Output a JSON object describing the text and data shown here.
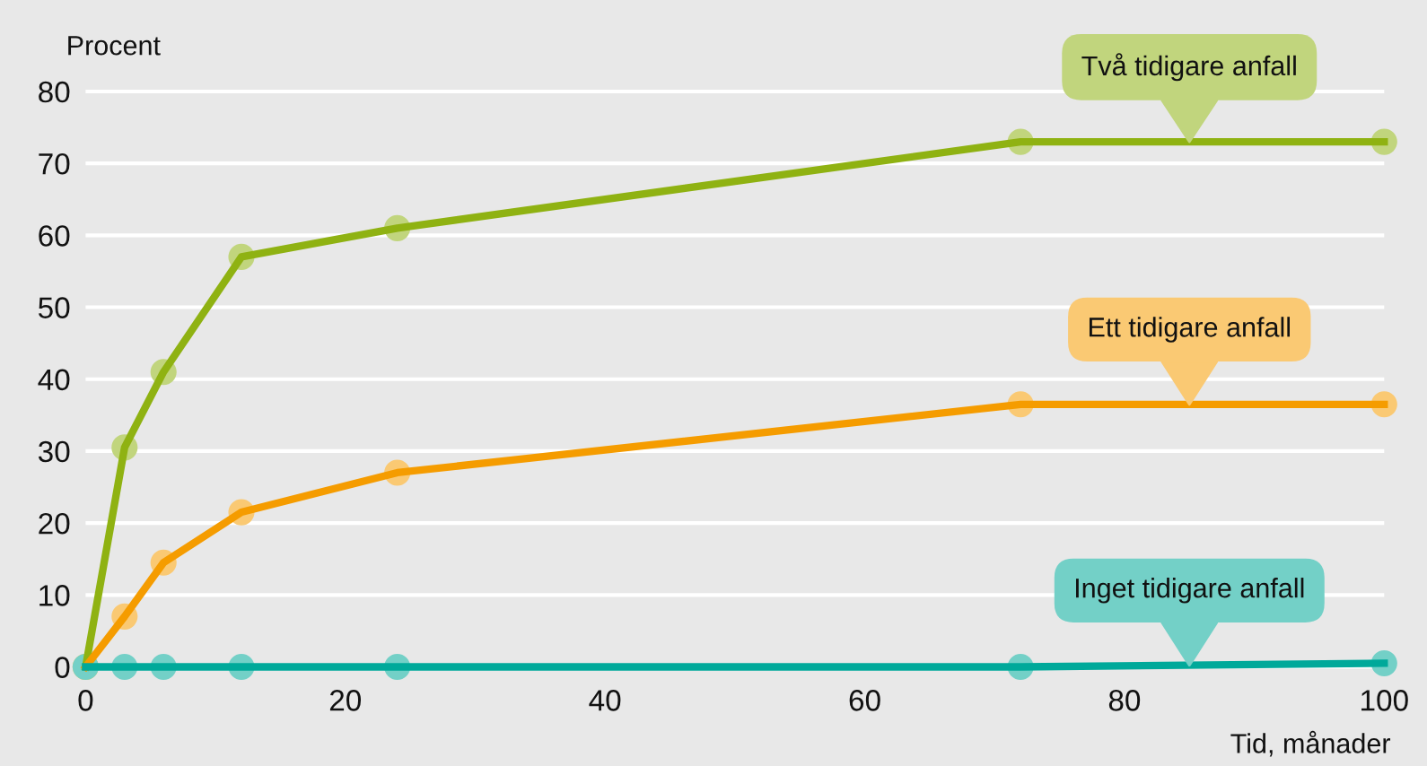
{
  "chart_data": {
    "type": "line",
    "xlabel": "Tid, månader",
    "ylabel": "Procent",
    "x": [
      0,
      3,
      6,
      12,
      24,
      72,
      100
    ],
    "series": [
      {
        "name": "Två tidigare anfall",
        "color": "#8fb212",
        "values": [
          0,
          30.5,
          41,
          57,
          61,
          73,
          73
        ]
      },
      {
        "name": "Ett tidigare anfall",
        "color": "#f59c00",
        "values": [
          0,
          7,
          14.5,
          21.5,
          27,
          36.5,
          36.5
        ]
      },
      {
        "name": "Inget tidigare anfall",
        "color": "#00a99a",
        "values": [
          0,
          0,
          0,
          0,
          0,
          0,
          0.5
        ]
      }
    ],
    "xlim": [
      0,
      100
    ],
    "ylim": [
      0,
      80
    ],
    "xticks": [
      0,
      20,
      40,
      60,
      80,
      100
    ],
    "yticks": [
      0,
      10,
      20,
      30,
      40,
      50,
      60,
      70,
      80
    ],
    "grid": "y",
    "marker": "circle",
    "line_style": "solid"
  }
}
